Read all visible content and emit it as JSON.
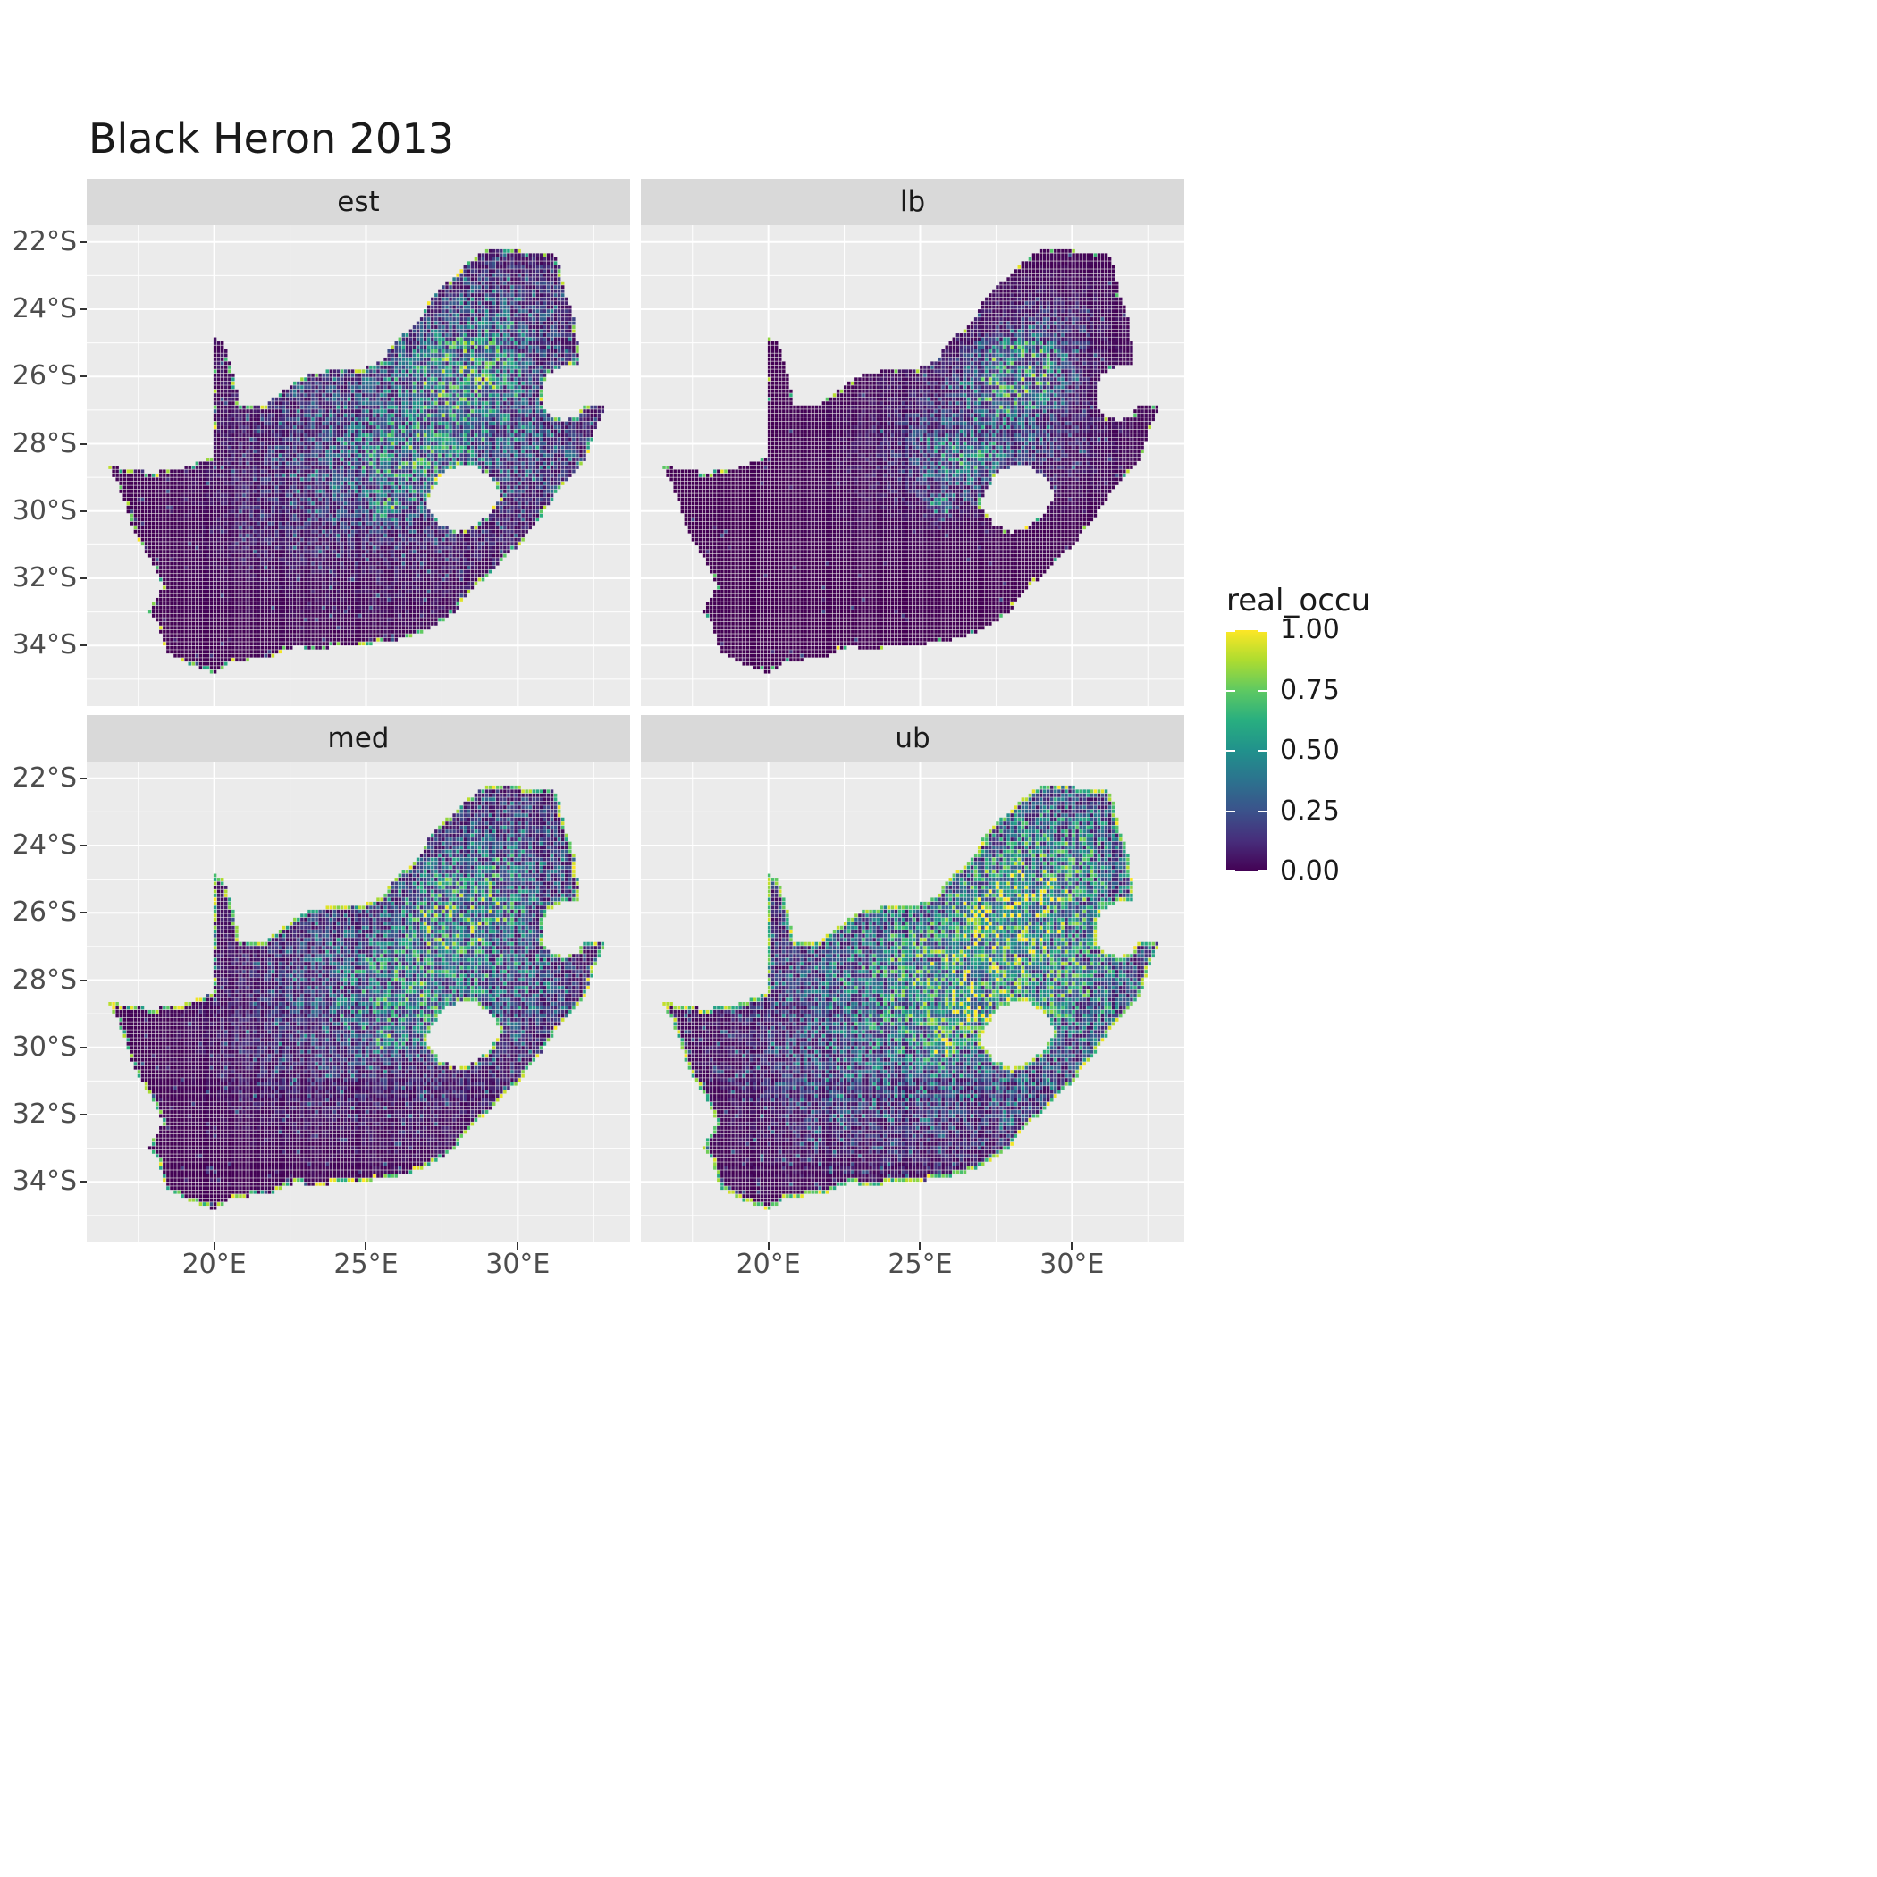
{
  "title": "Black Heron 2013",
  "facets": [
    {
      "label": "est"
    },
    {
      "label": "lb"
    },
    {
      "label": "med"
    },
    {
      "label": "ub"
    }
  ],
  "axes": {
    "x_ticks": [
      "20°E",
      "25°E",
      "30°E"
    ],
    "y_ticks": [
      "22°S",
      "24°S",
      "26°S",
      "28°S",
      "30°S",
      "32°S",
      "34°S"
    ]
  },
  "legend": {
    "title": "real_occu",
    "labels": [
      "1.00",
      "0.75",
      "0.50",
      "0.25",
      "0.00"
    ]
  },
  "colors": {
    "panel_bg": "#EBEBEB",
    "strip_bg": "#D9D9D9",
    "grid": "#FFFFFF",
    "tick": "#333333",
    "axis_text": "#4D4D4D",
    "title_text": "#1A1A1A"
  },
  "chart_data": {
    "type": "heatmap",
    "title": "Black Heron 2013",
    "subtitle": "",
    "variable": "real_occu",
    "region": "South Africa (Lesotho shown as hole, Eswatini notch on east)",
    "facets": [
      "est",
      "lb",
      "med",
      "ub"
    ],
    "value_range": [
      0.0,
      1.0
    ],
    "legend_ticks": [
      1.0,
      0.75,
      0.5,
      0.25,
      0.0
    ],
    "x_axis": {
      "tick_labels": [
        "20°E",
        "25°E",
        "30°E"
      ],
      "tick_lons": [
        20,
        25,
        30
      ],
      "range_lon": [
        15.8,
        33.7
      ]
    },
    "y_axis": {
      "tick_labels": [
        "22°S",
        "24°S",
        "26°S",
        "28°S",
        "30°S",
        "32°S",
        "34°S"
      ],
      "tick_lats": [
        -22,
        -24,
        -26,
        -28,
        -30,
        -32,
        -34
      ],
      "range_lat": [
        -21.5,
        -35.8
      ]
    },
    "grid": "white major and minor gridlines on gray panel",
    "legend_position": "right",
    "colormap": "viridis",
    "colormap_stops": [
      [
        0.0,
        "#440154"
      ],
      [
        0.125,
        "#472d7b"
      ],
      [
        0.25,
        "#3b528b"
      ],
      [
        0.375,
        "#2c728e"
      ],
      [
        0.5,
        "#21918c"
      ],
      [
        0.625,
        "#28ae80"
      ],
      [
        0.75,
        "#5ec962"
      ],
      [
        0.875,
        "#addc30"
      ],
      [
        1.0,
        "#fde725"
      ]
    ],
    "facet_params": {
      "est": {
        "scale": 0.95,
        "gamma": 1.0,
        "speckle": 1.0,
        "fringe": 0.4
      },
      "lb": {
        "scale": 0.9,
        "gamma": 2.2,
        "speckle": 0.45,
        "fringe": 0.15
      },
      "med": {
        "scale": 1.0,
        "gamma": 0.95,
        "speckle": 1.15,
        "fringe": 0.75
      },
      "ub": {
        "scale": 1.3,
        "gamma": 0.7,
        "speckle": 2.2,
        "fringe": 0.97
      }
    },
    "hotspots_approx": [
      [
        28.1,
        -26.0,
        1.05,
        0.8,
        1.0
      ],
      [
        26.6,
        -28.5,
        1.4,
        0.95,
        0.5
      ],
      [
        29.6,
        -24.5,
        1.4,
        1.1,
        0.3
      ],
      [
        24.9,
        -27.9,
        2.3,
        1.7,
        0.22
      ],
      [
        27.6,
        -26.6,
        4.3,
        3.7,
        0.33
      ],
      [
        30.1,
        -28.0,
        1.3,
        1.1,
        0.22
      ],
      [
        25.7,
        -29.95,
        0.25,
        0.22,
        0.85
      ],
      [
        22.3,
        -30.3,
        1.7,
        1.3,
        0.1
      ]
    ],
    "outline_approx": [
      [
        16.45,
        -28.6
      ],
      [
        17.1,
        -28.78
      ],
      [
        18.0,
        -28.85
      ],
      [
        19.0,
        -28.72
      ],
      [
        19.6,
        -28.5
      ],
      [
        19.99,
        -28.42
      ],
      [
        19.99,
        -26.6
      ],
      [
        19.99,
        -24.8
      ],
      [
        20.35,
        -25.05
      ],
      [
        20.55,
        -25.6
      ],
      [
        20.7,
        -26.2
      ],
      [
        20.85,
        -26.82
      ],
      [
        21.7,
        -26.86
      ],
      [
        22.6,
        -26.2
      ],
      [
        23.0,
        -25.98
      ],
      [
        24.0,
        -25.8
      ],
      [
        24.75,
        -25.8
      ],
      [
        25.55,
        -25.55
      ],
      [
        25.62,
        -25.45
      ],
      [
        26.0,
        -24.9
      ],
      [
        26.45,
        -24.6
      ],
      [
        26.85,
        -24.25
      ],
      [
        27.15,
        -23.65
      ],
      [
        27.75,
        -23.15
      ],
      [
        28.3,
        -22.65
      ],
      [
        29.05,
        -22.2
      ],
      [
        29.4,
        -22.17
      ],
      [
        30.3,
        -22.3
      ],
      [
        31.3,
        -22.4
      ],
      [
        31.6,
        -23.6
      ],
      [
        31.87,
        -24.3
      ],
      [
        32.0,
        -25.1
      ],
      [
        32.05,
        -25.7
      ],
      [
        31.4,
        -25.73
      ],
      [
        30.95,
        -26.0
      ],
      [
        30.78,
        -26.45
      ],
      [
        30.82,
        -26.85
      ],
      [
        31.1,
        -27.2
      ],
      [
        31.6,
        -27.32
      ],
      [
        31.97,
        -27.18
      ],
      [
        32.15,
        -26.86
      ],
      [
        32.89,
        -26.86
      ],
      [
        32.55,
        -27.6
      ],
      [
        32.35,
        -28.3
      ],
      [
        31.9,
        -28.85
      ],
      [
        31.2,
        -29.6
      ],
      [
        30.75,
        -30.2
      ],
      [
        30.1,
        -30.95
      ],
      [
        29.35,
        -31.65
      ],
      [
        28.5,
        -32.35
      ],
      [
        27.9,
        -33.03
      ],
      [
        27.1,
        -33.52
      ],
      [
        26.4,
        -33.76
      ],
      [
        25.65,
        -33.9
      ],
      [
        25.0,
        -33.98
      ],
      [
        24.2,
        -34.05
      ],
      [
        23.4,
        -34.1
      ],
      [
        22.6,
        -34.05
      ],
      [
        21.8,
        -34.4
      ],
      [
        20.7,
        -34.45
      ],
      [
        20.0,
        -34.82
      ],
      [
        19.3,
        -34.62
      ],
      [
        18.85,
        -34.37
      ],
      [
        18.45,
        -34.2
      ],
      [
        18.32,
        -33.9
      ],
      [
        18.15,
        -33.35
      ],
      [
        17.86,
        -33.05
      ],
      [
        17.95,
        -32.78
      ],
      [
        18.32,
        -32.3
      ],
      [
        18.1,
        -31.75
      ],
      [
        17.6,
        -31.0
      ],
      [
        17.25,
        -30.3
      ],
      [
        16.87,
        -29.25
      ]
    ],
    "lesotho_hole_approx": [
      [
        27.02,
        -29.62
      ],
      [
        27.3,
        -29.25
      ],
      [
        27.55,
        -28.88
      ],
      [
        28.05,
        -28.66
      ],
      [
        28.55,
        -28.62
      ],
      [
        29.0,
        -28.92
      ],
      [
        29.3,
        -29.25
      ],
      [
        29.45,
        -29.55
      ],
      [
        29.12,
        -30.05
      ],
      [
        28.6,
        -30.4
      ],
      [
        28.05,
        -30.66
      ],
      [
        27.45,
        -30.4
      ],
      [
        27.08,
        -30.0
      ]
    ]
  }
}
